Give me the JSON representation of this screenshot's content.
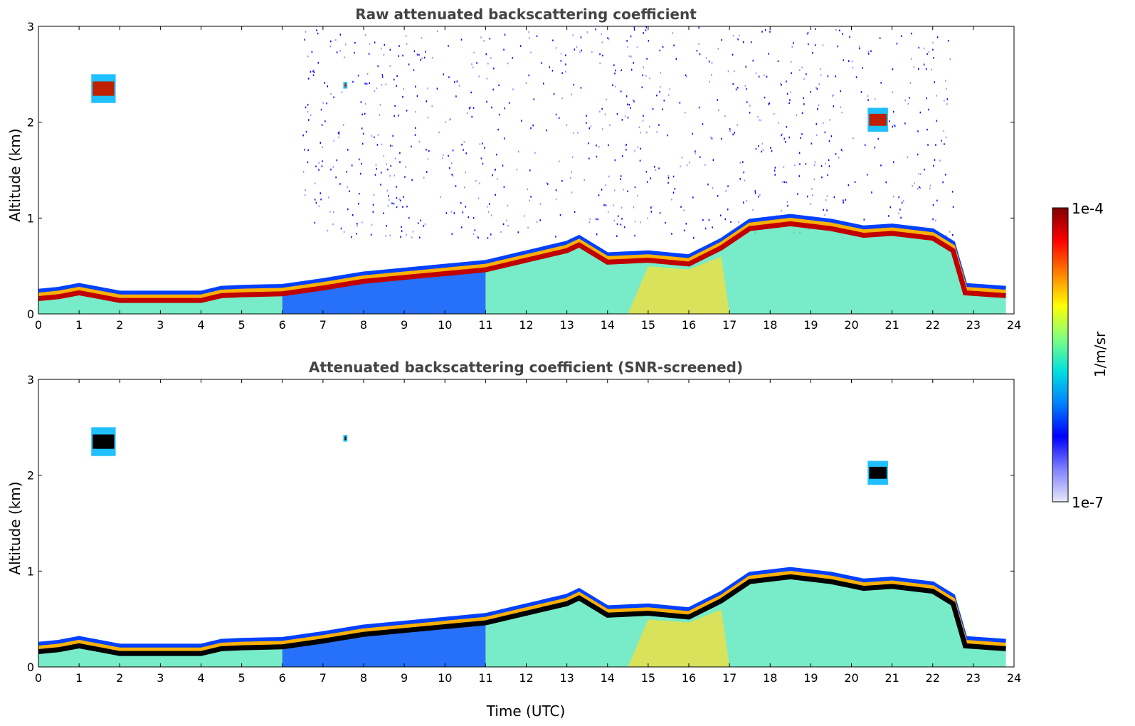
{
  "chart_data": [
    {
      "type": "heatmap",
      "title": "Raw attenuated backscattering coefficient",
      "xlabel": "",
      "ylabel": "Altitude (km)",
      "xlim": [
        0,
        24
      ],
      "ylim": [
        0,
        3
      ],
      "xticks": [
        "0",
        "1",
        "2",
        "3",
        "4",
        "5",
        "6",
        "7",
        "8",
        "9",
        "10",
        "11",
        "12",
        "13",
        "14",
        "15",
        "16",
        "17",
        "18",
        "19",
        "20",
        "21",
        "22",
        "23",
        "24"
      ],
      "yticks": [
        "0",
        "1",
        "2",
        "3"
      ],
      "colormap": "jet",
      "screened": false,
      "boundary_layer_top_km": [
        {
          "t": 0.0,
          "h": 0.22
        },
        {
          "t": 0.5,
          "h": 0.24
        },
        {
          "t": 1.0,
          "h": 0.28
        },
        {
          "t": 2.0,
          "h": 0.2
        },
        {
          "t": 3.0,
          "h": 0.2
        },
        {
          "t": 4.0,
          "h": 0.2
        },
        {
          "t": 4.5,
          "h": 0.25
        },
        {
          "t": 5.0,
          "h": 0.26
        },
        {
          "t": 6.0,
          "h": 0.27
        },
        {
          "t": 7.0,
          "h": 0.33
        },
        {
          "t": 8.0,
          "h": 0.4
        },
        {
          "t": 9.0,
          "h": 0.44
        },
        {
          "t": 10.0,
          "h": 0.48
        },
        {
          "t": 11.0,
          "h": 0.52
        },
        {
          "t": 12.0,
          "h": 0.62
        },
        {
          "t": 13.0,
          "h": 0.72
        },
        {
          "t": 13.3,
          "h": 0.78
        },
        {
          "t": 14.0,
          "h": 0.6
        },
        {
          "t": 15.0,
          "h": 0.62
        },
        {
          "t": 16.0,
          "h": 0.58
        },
        {
          "t": 16.8,
          "h": 0.75
        },
        {
          "t": 17.5,
          "h": 0.95
        },
        {
          "t": 18.5,
          "h": 1.0
        },
        {
          "t": 19.5,
          "h": 0.95
        },
        {
          "t": 20.3,
          "h": 0.88
        },
        {
          "t": 21.0,
          "h": 0.9
        },
        {
          "t": 22.0,
          "h": 0.85
        },
        {
          "t": 22.5,
          "h": 0.72
        },
        {
          "t": 22.8,
          "h": 0.28
        },
        {
          "t": 23.8,
          "h": 0.25
        }
      ],
      "cloud_layers": [
        {
          "t_start": 1.3,
          "t_end": 1.9,
          "base_km": 2.2,
          "top_km": 2.5
        },
        {
          "t_start": 20.4,
          "t_end": 20.9,
          "base_km": 1.9,
          "top_km": 2.15
        },
        {
          "t_start": 7.5,
          "t_end": 7.6,
          "base_km": 2.35,
          "top_km": 2.42
        }
      ]
    },
    {
      "type": "heatmap",
      "title": "Attenuated backscattering coefficient (SNR-screened)",
      "xlabel": "Time (UTC)",
      "ylabel": "Altitude (km)",
      "xlim": [
        0,
        24
      ],
      "ylim": [
        0,
        3
      ],
      "xticks": [
        "0",
        "1",
        "2",
        "3",
        "4",
        "5",
        "6",
        "7",
        "8",
        "9",
        "10",
        "11",
        "12",
        "13",
        "14",
        "15",
        "16",
        "17",
        "18",
        "19",
        "20",
        "21",
        "22",
        "23",
        "24"
      ],
      "yticks": [
        "0",
        "1",
        "2",
        "3"
      ],
      "colormap": "jet",
      "screened": true,
      "boundary_layer_top_km": [
        {
          "t": 0.0,
          "h": 0.22
        },
        {
          "t": 0.5,
          "h": 0.24
        },
        {
          "t": 1.0,
          "h": 0.28
        },
        {
          "t": 2.0,
          "h": 0.2
        },
        {
          "t": 3.0,
          "h": 0.2
        },
        {
          "t": 4.0,
          "h": 0.2
        },
        {
          "t": 4.5,
          "h": 0.25
        },
        {
          "t": 5.0,
          "h": 0.26
        },
        {
          "t": 6.0,
          "h": 0.27
        },
        {
          "t": 7.0,
          "h": 0.33
        },
        {
          "t": 8.0,
          "h": 0.4
        },
        {
          "t": 9.0,
          "h": 0.44
        },
        {
          "t": 10.0,
          "h": 0.48
        },
        {
          "t": 11.0,
          "h": 0.52
        },
        {
          "t": 12.0,
          "h": 0.62
        },
        {
          "t": 13.0,
          "h": 0.72
        },
        {
          "t": 13.3,
          "h": 0.78
        },
        {
          "t": 14.0,
          "h": 0.6
        },
        {
          "t": 15.0,
          "h": 0.62
        },
        {
          "t": 16.0,
          "h": 0.58
        },
        {
          "t": 16.8,
          "h": 0.75
        },
        {
          "t": 17.5,
          "h": 0.95
        },
        {
          "t": 18.5,
          "h": 1.0
        },
        {
          "t": 19.5,
          "h": 0.95
        },
        {
          "t": 20.3,
          "h": 0.88
        },
        {
          "t": 21.0,
          "h": 0.9
        },
        {
          "t": 22.0,
          "h": 0.85
        },
        {
          "t": 22.5,
          "h": 0.72
        },
        {
          "t": 22.8,
          "h": 0.28
        },
        {
          "t": 23.8,
          "h": 0.25
        }
      ],
      "cloud_layers": [
        {
          "t_start": 1.3,
          "t_end": 1.9,
          "base_km": 2.2,
          "top_km": 2.5
        },
        {
          "t_start": 20.4,
          "t_end": 20.9,
          "base_km": 1.9,
          "top_km": 2.15
        },
        {
          "t_start": 7.5,
          "t_end": 7.6,
          "base_km": 2.35,
          "top_km": 2.42
        }
      ]
    }
  ],
  "colorbar": {
    "label": "1/m/sr",
    "max_label": "1e-4",
    "min_label": "1e-7",
    "range": [
      1e-07,
      0.0001
    ],
    "scale": "log",
    "colors": [
      "#e8e8f8",
      "#8080ff",
      "#0000ff",
      "#0080ff",
      "#00e0e0",
      "#80ff80",
      "#ffff00",
      "#ff8000",
      "#ff0000",
      "#800000"
    ]
  }
}
